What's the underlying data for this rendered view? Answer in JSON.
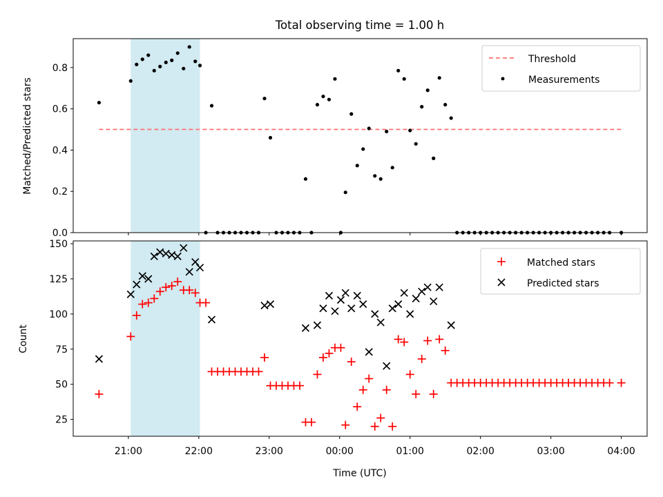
{
  "figure": {
    "title": "Total observing time = 1.00 h",
    "xlabel": "Time (UTC)"
  },
  "chart_data": [
    {
      "type": "scatter",
      "ylabel": "Matched/Predicted stars",
      "ylim": [
        0,
        0.94
      ],
      "yticks": [
        0.0,
        0.2,
        0.4,
        0.6,
        0.8
      ],
      "ytick_labels": [
        "0.0",
        "0.2",
        "0.4",
        "0.6",
        "0.8"
      ],
      "xlim": [
        "20:13",
        "04:22"
      ],
      "xticks": [
        "21:00",
        "22:00",
        "23:00",
        "00:00",
        "01:00",
        "02:00",
        "03:00",
        "04:00"
      ],
      "grid": false,
      "legend_position": "top-right",
      "shaded_interval": {
        "x": [
          "21:02",
          "22:01"
        ],
        "color": "#add8e6"
      },
      "threshold": {
        "name": "Threshold",
        "y": 0.5,
        "x": [
          "20:35",
          "04:00"
        ],
        "color": "#ff7070",
        "style": "dashed"
      },
      "series": [
        {
          "name": "Measurements",
          "marker": "dot",
          "color": "#000000",
          "points": [
            [
              "20:35",
              0.63
            ],
            [
              "21:02",
              0.735
            ],
            [
              "21:07",
              0.815
            ],
            [
              "21:12",
              0.84
            ],
            [
              "21:17",
              0.86
            ],
            [
              "21:22",
              0.785
            ],
            [
              "21:27",
              0.805
            ],
            [
              "21:32",
              0.825
            ],
            [
              "21:37",
              0.835
            ],
            [
              "21:42",
              0.87
            ],
            [
              "21:47",
              0.795
            ],
            [
              "21:52",
              0.9
            ],
            [
              "21:57",
              0.83
            ],
            [
              "22:01",
              0.81
            ],
            [
              "22:06",
              0.0
            ],
            [
              "22:11",
              0.615
            ],
            [
              "22:16",
              0.0
            ],
            [
              "22:21",
              0.0
            ],
            [
              "22:26",
              0.0
            ],
            [
              "22:31",
              0.0
            ],
            [
              "22:36",
              0.0
            ],
            [
              "22:41",
              0.0
            ],
            [
              "22:46",
              0.0
            ],
            [
              "22:51",
              0.0
            ],
            [
              "22:56",
              0.65
            ],
            [
              "23:01",
              0.46
            ],
            [
              "23:06",
              0.0
            ],
            [
              "23:11",
              0.0
            ],
            [
              "23:16",
              0.0
            ],
            [
              "23:21",
              0.0
            ],
            [
              "23:26",
              0.0
            ],
            [
              "23:31",
              0.26
            ],
            [
              "23:36",
              0.0
            ],
            [
              "23:41",
              0.62
            ],
            [
              "23:46",
              0.66
            ],
            [
              "23:51",
              0.645
            ],
            [
              "23:56",
              0.745
            ],
            [
              "00:01",
              0.0
            ],
            [
              "00:05",
              0.195
            ],
            [
              "00:10",
              0.575
            ],
            [
              "00:15",
              0.325
            ],
            [
              "00:20",
              0.405
            ],
            [
              "00:25",
              0.505
            ],
            [
              "00:30",
              0.275
            ],
            [
              "00:35",
              0.26
            ],
            [
              "00:40",
              0.49
            ],
            [
              "00:45",
              0.315
            ],
            [
              "00:50",
              0.785
            ],
            [
              "00:55",
              0.745
            ],
            [
              "01:00",
              0.495
            ],
            [
              "01:05",
              0.43
            ],
            [
              "01:10",
              0.61
            ],
            [
              "01:15",
              0.69
            ],
            [
              "01:20",
              0.36
            ],
            [
              "01:25",
              0.75
            ],
            [
              "01:30",
              0.62
            ],
            [
              "01:35",
              0.555
            ],
            [
              "01:40",
              0.0
            ],
            [
              "01:45",
              0.0
            ],
            [
              "01:50",
              0.0
            ],
            [
              "01:55",
              0.0
            ],
            [
              "02:00",
              0.0
            ],
            [
              "02:05",
              0.0
            ],
            [
              "02:10",
              0.0
            ],
            [
              "02:15",
              0.0
            ],
            [
              "02:20",
              0.0
            ],
            [
              "02:25",
              0.0
            ],
            [
              "02:30",
              0.0
            ],
            [
              "02:35",
              0.0
            ],
            [
              "02:40",
              0.0
            ],
            [
              "02:45",
              0.0
            ],
            [
              "02:50",
              0.0
            ],
            [
              "02:55",
              0.0
            ],
            [
              "03:00",
              0.0
            ],
            [
              "03:05",
              0.0
            ],
            [
              "03:10",
              0.0
            ],
            [
              "03:15",
              0.0
            ],
            [
              "03:20",
              0.0
            ],
            [
              "03:25",
              0.0
            ],
            [
              "03:30",
              0.0
            ],
            [
              "03:35",
              0.0
            ],
            [
              "03:40",
              0.0
            ],
            [
              "03:45",
              0.0
            ],
            [
              "03:50",
              0.0
            ],
            [
              "04:00",
              0.0
            ]
          ]
        }
      ]
    },
    {
      "type": "scatter",
      "ylabel": "Count",
      "ylim": [
        13,
        152
      ],
      "yticks": [
        25,
        50,
        75,
        100,
        125,
        150
      ],
      "ytick_labels": [
        "25",
        "50",
        "75",
        "100",
        "125",
        "150"
      ],
      "xlim": [
        "20:13",
        "04:22"
      ],
      "xticks": [
        "21:00",
        "22:00",
        "23:00",
        "00:00",
        "01:00",
        "02:00",
        "03:00",
        "04:00"
      ],
      "xtick_labels": [
        "21:00",
        "22:00",
        "23:00",
        "00:00",
        "01:00",
        "02:00",
        "03:00",
        "04:00"
      ],
      "grid": false,
      "legend_position": "top-right",
      "shaded_interval": {
        "x": [
          "21:02",
          "22:01"
        ],
        "color": "#add8e6"
      },
      "series": [
        {
          "name": "Matched stars",
          "marker": "plus",
          "color": "#ff0000",
          "points": [
            [
              "20:35",
              43
            ],
            [
              "21:02",
              84
            ],
            [
              "21:07",
              99
            ],
            [
              "21:12",
              107
            ],
            [
              "21:17",
              108
            ],
            [
              "21:22",
              111
            ],
            [
              "21:27",
              116
            ],
            [
              "21:32",
              119
            ],
            [
              "21:37",
              120
            ],
            [
              "21:42",
              123
            ],
            [
              "21:47",
              117
            ],
            [
              "21:52",
              117
            ],
            [
              "21:57",
              115
            ],
            [
              "22:01",
              108
            ],
            [
              "22:06",
              108
            ],
            [
              "22:11",
              59
            ],
            [
              "22:16",
              59
            ],
            [
              "22:21",
              59
            ],
            [
              "22:26",
              59
            ],
            [
              "22:31",
              59
            ],
            [
              "22:36",
              59
            ],
            [
              "22:41",
              59
            ],
            [
              "22:46",
              59
            ],
            [
              "22:51",
              59
            ],
            [
              "22:56",
              69
            ],
            [
              "23:01",
              49
            ],
            [
              "23:06",
              49
            ],
            [
              "23:11",
              49
            ],
            [
              "23:16",
              49
            ],
            [
              "23:21",
              49
            ],
            [
              "23:26",
              49
            ],
            [
              "23:31",
              23
            ],
            [
              "23:36",
              23
            ],
            [
              "23:41",
              57
            ],
            [
              "23:46",
              69
            ],
            [
              "23:51",
              72
            ],
            [
              "23:56",
              76
            ],
            [
              "00:01",
              76
            ],
            [
              "00:05",
              21
            ],
            [
              "00:10",
              66
            ],
            [
              "00:15",
              34
            ],
            [
              "00:20",
              46
            ],
            [
              "00:25",
              54
            ],
            [
              "00:30",
              20
            ],
            [
              "00:35",
              26
            ],
            [
              "00:40",
              46
            ],
            [
              "00:45",
              20
            ],
            [
              "00:50",
              82
            ],
            [
              "00:55",
              80
            ],
            [
              "01:00",
              57
            ],
            [
              "01:05",
              43
            ],
            [
              "01:10",
              68
            ],
            [
              "01:15",
              81
            ],
            [
              "01:20",
              43
            ],
            [
              "01:25",
              82
            ],
            [
              "01:30",
              74
            ],
            [
              "01:35",
              51
            ],
            [
              "01:40",
              51
            ],
            [
              "01:45",
              51
            ],
            [
              "01:50",
              51
            ],
            [
              "01:55",
              51
            ],
            [
              "02:00",
              51
            ],
            [
              "02:05",
              51
            ],
            [
              "02:10",
              51
            ],
            [
              "02:15",
              51
            ],
            [
              "02:20",
              51
            ],
            [
              "02:25",
              51
            ],
            [
              "02:30",
              51
            ],
            [
              "02:35",
              51
            ],
            [
              "02:40",
              51
            ],
            [
              "02:45",
              51
            ],
            [
              "02:50",
              51
            ],
            [
              "02:55",
              51
            ],
            [
              "03:00",
              51
            ],
            [
              "03:05",
              51
            ],
            [
              "03:10",
              51
            ],
            [
              "03:15",
              51
            ],
            [
              "03:20",
              51
            ],
            [
              "03:25",
              51
            ],
            [
              "03:30",
              51
            ],
            [
              "03:35",
              51
            ],
            [
              "03:40",
              51
            ],
            [
              "03:45",
              51
            ],
            [
              "03:50",
              51
            ],
            [
              "04:00",
              51
            ]
          ]
        },
        {
          "name": "Predicted stars",
          "marker": "x",
          "color": "#000000",
          "points": [
            [
              "20:35",
              68
            ],
            [
              "21:02",
              114
            ],
            [
              "21:07",
              121
            ],
            [
              "21:12",
              127
            ],
            [
              "21:17",
              125
            ],
            [
              "21:22",
              141
            ],
            [
              "21:27",
              144
            ],
            [
              "21:32",
              143
            ],
            [
              "21:37",
              142
            ],
            [
              "21:42",
              141
            ],
            [
              "21:47",
              147
            ],
            [
              "21:52",
              130
            ],
            [
              "21:57",
              137
            ],
            [
              "22:01",
              133
            ],
            [
              "22:11",
              96
            ],
            [
              "22:56",
              106
            ],
            [
              "23:01",
              107
            ],
            [
              "23:31",
              90
            ],
            [
              "23:41",
              92
            ],
            [
              "23:46",
              104
            ],
            [
              "23:51",
              113
            ],
            [
              "23:56",
              102
            ],
            [
              "00:01",
              110
            ],
            [
              "00:05",
              115
            ],
            [
              "00:10",
              104
            ],
            [
              "00:15",
              113
            ],
            [
              "00:20",
              107
            ],
            [
              "00:25",
              73
            ],
            [
              "00:30",
              100
            ],
            [
              "00:35",
              94
            ],
            [
              "00:40",
              63
            ],
            [
              "00:45",
              104
            ],
            [
              "00:50",
              107
            ],
            [
              "00:55",
              115
            ],
            [
              "01:00",
              100
            ],
            [
              "01:05",
              111
            ],
            [
              "01:10",
              116
            ],
            [
              "01:15",
              119
            ],
            [
              "01:20",
              109
            ],
            [
              "01:25",
              119
            ],
            [
              "01:35",
              92
            ]
          ]
        }
      ]
    }
  ]
}
